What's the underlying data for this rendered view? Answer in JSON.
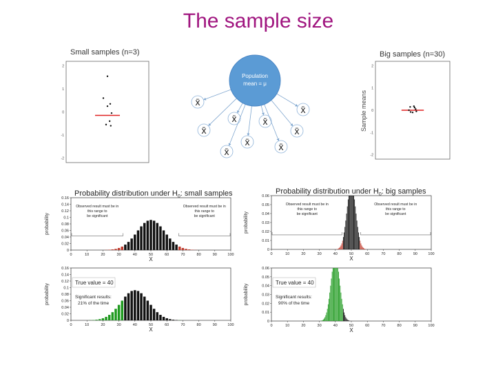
{
  "slide": {
    "title": "The sample size"
  },
  "small_samples": {
    "title": "Small samples (n=3)",
    "yticks": [
      "2",
      "1",
      "0",
      "-1",
      "-2"
    ],
    "mean_y": -0.15,
    "points": [
      [
        0.0,
        1.55
      ],
      [
        -0.15,
        0.6
      ],
      [
        0.1,
        0.35
      ],
      [
        0.0,
        0.25
      ],
      [
        0.15,
        -0.05
      ],
      [
        0.08,
        -0.4
      ],
      [
        -0.05,
        -0.55
      ],
      [
        0.12,
        -0.6
      ]
    ]
  },
  "big_samples": {
    "title": "Big samples (n=30)",
    "ylabel": "Sample means",
    "yticks": [
      "2",
      "1",
      "0",
      "-1",
      "-2"
    ],
    "mean_y": 0.0,
    "points": [
      [
        -0.1,
        0.15
      ],
      [
        0.05,
        0.18
      ],
      [
        0.12,
        0.05
      ],
      [
        -0.08,
        -0.08
      ],
      [
        0.0,
        -0.1
      ],
      [
        0.15,
        -0.05
      ],
      [
        -0.15,
        0.0
      ],
      [
        0.08,
        0.12
      ]
    ]
  },
  "population": {
    "label": "Population mean = μ",
    "color": "#5b9bd5",
    "sample_symbol": "x̄",
    "sample_count": 10
  },
  "chart_data": [
    {
      "type": "bar",
      "title": "Probability distribution under H0: small samples",
      "title_parts": [
        "Probability distribution under H",
        "0",
        ": small samples"
      ],
      "xlabel": "X",
      "ylabel": "probability",
      "xlim": [
        0,
        100
      ],
      "ylim": [
        0,
        0.16
      ],
      "xticks": [
        "0",
        "10",
        "20",
        "30",
        "40",
        "50",
        "60",
        "70",
        "80",
        "90",
        "100"
      ],
      "yticks": [
        "0.16",
        "0.14",
        "0.12",
        "0.1",
        "0.08",
        "0.06",
        "0.04",
        "0.02",
        "0"
      ],
      "distribution": {
        "mean": 50,
        "sd": 8.66,
        "step": 2
      },
      "sig_region": {
        "low": 33,
        "high": 67,
        "color": "#c0392b"
      },
      "annotations": [
        "Observed result must be in this range to be significant",
        "Observed result must be in this range to be significant"
      ]
    },
    {
      "type": "bar",
      "title": "Probability distribution under H0: big samples",
      "title_parts": [
        "Probability distribution under H",
        "0",
        ": big samples"
      ],
      "xlabel": "X",
      "ylabel": "probability",
      "xlim": [
        0,
        100
      ],
      "ylim": [
        0,
        0.06
      ],
      "xticks": [
        "0",
        "10",
        "20",
        "30",
        "40",
        "50",
        "60",
        "70",
        "80",
        "90",
        "100"
      ],
      "yticks": [
        "0.06",
        "0.05",
        "0.04",
        "0.03",
        "0.02",
        "0.01",
        "0"
      ],
      "distribution": {
        "mean": 50,
        "sd": 2.74,
        "step": 0.5
      },
      "sig_region": {
        "low": 44.6,
        "high": 55.4,
        "color": "#c0392b"
      },
      "annotations": [
        "Observed result must be in this range to be significant",
        "Observed result must be in this range to be significant"
      ]
    },
    {
      "type": "bar",
      "title": "",
      "xlabel": "X",
      "ylabel": "probability",
      "xlim": [
        0,
        100
      ],
      "ylim": [
        0,
        0.16
      ],
      "xticks": [
        "0",
        "10",
        "20",
        "30",
        "40",
        "50",
        "60",
        "70",
        "80",
        "90",
        "100"
      ],
      "yticks": [
        "0.16",
        "0.14",
        "0.12",
        "0.1",
        "0.08",
        "0.06",
        "0.04",
        "0.02",
        "0"
      ],
      "distribution": {
        "mean": 40,
        "sd": 8.66,
        "step": 2
      },
      "sig_region": {
        "low": 33,
        "high": 67,
        "color": "#1f9a1f"
      },
      "annotations": [
        "True value = 40",
        "Significant results: 21% of the time"
      ]
    },
    {
      "type": "bar",
      "title": "",
      "xlabel": "X",
      "ylabel": "probability",
      "xlim": [
        0,
        100
      ],
      "ylim": [
        0,
        0.06
      ],
      "xticks": [
        "0",
        "10",
        "20",
        "30",
        "40",
        "50",
        "60",
        "70",
        "80",
        "90",
        "100"
      ],
      "yticks": [
        "0.06",
        "0.05",
        "0.04",
        "0.03",
        "0.02",
        "0.01",
        "0"
      ],
      "distribution": {
        "mean": 40,
        "sd": 2.74,
        "step": 0.5
      },
      "sig_region": {
        "low": 44.6,
        "high": 55.4,
        "color": "#1f9a1f"
      },
      "annotations": [
        "True value = 40",
        "Significant results: 90% of the time"
      ]
    }
  ]
}
